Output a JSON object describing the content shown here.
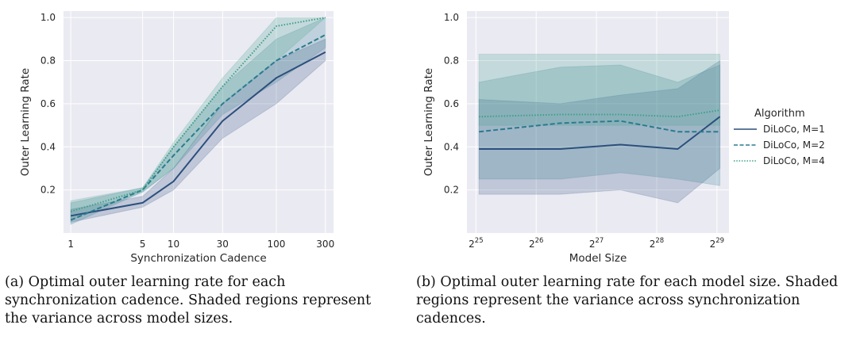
{
  "colors": {
    "m1": "#2c4f7c",
    "m2": "#2a7b8f",
    "m4": "#3e9e8a",
    "panel_bg": "#eaeaf2",
    "grid": "#ffffff"
  },
  "chart_data": [
    {
      "type": "line",
      "panel": "a",
      "xlabel": "Synchronization Cadence",
      "ylabel": "Outer Learning Rate",
      "xscale": "log",
      "xlim": [
        0.85,
        360
      ],
      "ylim": [
        0.0,
        1.03
      ],
      "x": [
        1,
        5,
        10,
        30,
        100,
        300
      ],
      "x_tick_labels": [
        "1",
        "5",
        "10",
        "30",
        "100",
        "300"
      ],
      "y_ticks": [
        0.2,
        0.4,
        0.6,
        0.8,
        1.0
      ],
      "y_tick_labels": [
        "0.2",
        "0.4",
        "0.6",
        "0.8",
        "1.0"
      ],
      "grid": true,
      "series": [
        {
          "key": "m1",
          "name": "DiLoCo, M=1",
          "style": "solid",
          "values": [
            0.08,
            0.14,
            0.24,
            0.52,
            0.72,
            0.84
          ],
          "band_low": [
            0.05,
            0.12,
            0.2,
            0.44,
            0.6,
            0.8
          ],
          "band_high": [
            0.11,
            0.17,
            0.3,
            0.6,
            0.8,
            0.9
          ]
        },
        {
          "key": "m2",
          "name": "DiLoCo, M=2",
          "style": "dashed",
          "values": [
            0.06,
            0.2,
            0.36,
            0.6,
            0.8,
            0.92
          ],
          "band_low": [
            0.04,
            0.19,
            0.3,
            0.55,
            0.7,
            0.86
          ],
          "band_high": [
            0.14,
            0.21,
            0.4,
            0.68,
            0.9,
            1.0
          ]
        },
        {
          "key": "m4",
          "name": "DiLoCo, M=4",
          "style": "dotted",
          "values": [
            0.1,
            0.2,
            0.4,
            0.68,
            0.96,
            1.0
          ],
          "band_low": [
            0.06,
            0.19,
            0.3,
            0.6,
            0.8,
            1.0
          ],
          "band_high": [
            0.15,
            0.21,
            0.42,
            0.72,
            1.0,
            1.0
          ]
        }
      ]
    },
    {
      "type": "line",
      "panel": "b",
      "xlabel": "Model Size",
      "ylabel": "Outer Learning Rate",
      "xscale": "log2",
      "xlim": [
        24.85,
        29.2
      ],
      "ylim": [
        0.0,
        1.03
      ],
      "x": [
        25.05,
        26.4,
        27.4,
        28.35,
        29.05
      ],
      "x_ticks": [
        25,
        26,
        27,
        28,
        29
      ],
      "x_tick_base": "2",
      "x_tick_exponents": [
        "25",
        "26",
        "27",
        "28",
        "29"
      ],
      "y_ticks": [
        0.2,
        0.4,
        0.6,
        0.8,
        1.0
      ],
      "y_tick_labels": [
        "0.2",
        "0.4",
        "0.6",
        "0.8",
        "1.0"
      ],
      "grid": true,
      "legend": {
        "title": "Algorithm",
        "placement": "outside-right",
        "items": [
          "DiLoCo, M=1",
          "DiLoCo, M=2",
          "DiLoCo, M=4"
        ]
      },
      "series": [
        {
          "key": "m1",
          "name": "DiLoCo, M=1",
          "style": "solid",
          "values": [
            0.39,
            0.39,
            0.41,
            0.39,
            0.54
          ],
          "band_low": [
            0.18,
            0.18,
            0.2,
            0.14,
            0.3
          ],
          "band_high": [
            0.62,
            0.6,
            0.64,
            0.67,
            0.8
          ]
        },
        {
          "key": "m2",
          "name": "DiLoCo, M=2",
          "style": "dashed",
          "values": [
            0.47,
            0.51,
            0.52,
            0.47,
            0.47
          ],
          "band_low": [
            0.25,
            0.25,
            0.28,
            0.25,
            0.22
          ],
          "band_high": [
            0.7,
            0.77,
            0.78,
            0.7,
            0.78
          ]
        },
        {
          "key": "m4",
          "name": "DiLoCo, M=4",
          "style": "dotted",
          "values": [
            0.54,
            0.55,
            0.55,
            0.54,
            0.57
          ],
          "band_low": [
            0.5,
            0.5,
            0.5,
            0.5,
            0.5
          ],
          "band_high": [
            0.83,
            0.83,
            0.83,
            0.83,
            0.83
          ]
        }
      ]
    }
  ],
  "captions": {
    "a": "(a) Optimal outer learning rate for each synchronization cadence. Shaded regions represent the variance across model sizes.",
    "b": "(b) Optimal outer learning rate for each model size. Shaded regions represent the variance across synchronization cadences."
  }
}
